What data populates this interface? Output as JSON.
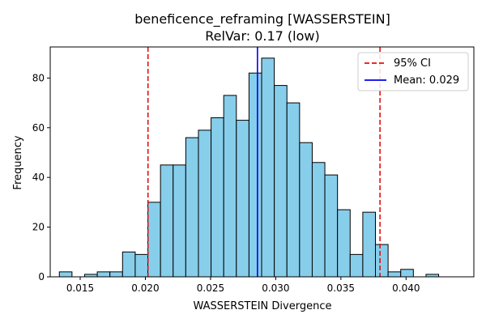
{
  "chart_data": {
    "type": "bar",
    "title": "beneficence_reframing [WASSERSTEIN]",
    "subtitle": "RelVar: 0.17 (low)",
    "xlabel": "WASSERSTEIN Divergence",
    "ylabel": "Frequency",
    "xlim": [
      0.0127,
      0.0452
    ],
    "ylim": [
      0,
      92.5
    ],
    "xticks": [
      0.015,
      0.02,
      0.025,
      0.03,
      0.035,
      0.04
    ],
    "xtick_labels": [
      "0.015",
      "0.020",
      "0.025",
      "0.030",
      "0.035",
      "0.040"
    ],
    "yticks": [
      0,
      20,
      40,
      60,
      80
    ],
    "ytick_labels": [
      "0",
      "20",
      "40",
      "60",
      "80"
    ],
    "bin_width": 0.00097,
    "bins": [
      {
        "start": 0.0134,
        "count": 2
      },
      {
        "start": 0.01437,
        "count": 0
      },
      {
        "start": 0.01534,
        "count": 1
      },
      {
        "start": 0.01631,
        "count": 2
      },
      {
        "start": 0.01728,
        "count": 2
      },
      {
        "start": 0.01825,
        "count": 10
      },
      {
        "start": 0.01922,
        "count": 9
      },
      {
        "start": 0.02019,
        "count": 30
      },
      {
        "start": 0.02116,
        "count": 45
      },
      {
        "start": 0.02213,
        "count": 45
      },
      {
        "start": 0.0231,
        "count": 56
      },
      {
        "start": 0.02407,
        "count": 59
      },
      {
        "start": 0.02504,
        "count": 64
      },
      {
        "start": 0.02601,
        "count": 73
      },
      {
        "start": 0.02698,
        "count": 63
      },
      {
        "start": 0.02795,
        "count": 82
      },
      {
        "start": 0.02892,
        "count": 88
      },
      {
        "start": 0.02989,
        "count": 77
      },
      {
        "start": 0.03086,
        "count": 70
      },
      {
        "start": 0.03183,
        "count": 54
      },
      {
        "start": 0.0328,
        "count": 46
      },
      {
        "start": 0.03377,
        "count": 41
      },
      {
        "start": 0.03474,
        "count": 27
      },
      {
        "start": 0.03571,
        "count": 9
      },
      {
        "start": 0.03668,
        "count": 26
      },
      {
        "start": 0.03765,
        "count": 13
      },
      {
        "start": 0.03862,
        "count": 2
      },
      {
        "start": 0.03959,
        "count": 3
      },
      {
        "start": 0.04056,
        "count": 0
      },
      {
        "start": 0.04153,
        "count": 1
      }
    ],
    "vlines": [
      {
        "name": "95% CI",
        "x": 0.0202,
        "color": "#e01010",
        "style": "dashed"
      },
      {
        "name": "Mean: 0.029",
        "x": 0.0286,
        "color": "#0000ee",
        "style": "solid"
      },
      {
        "name": "95% CI upper",
        "x": 0.038,
        "color": "#e01010",
        "style": "dashed"
      }
    ],
    "legend": {
      "placement": "top-right",
      "entries": [
        {
          "label": "95% CI",
          "color": "#e01010",
          "style": "dashed"
        },
        {
          "label": "Mean: 0.029",
          "color": "#0000ee",
          "style": "solid"
        }
      ]
    },
    "colors": {
      "bar_fill": "#87ceeb",
      "bar_edge": "#000000"
    },
    "grid": false
  }
}
